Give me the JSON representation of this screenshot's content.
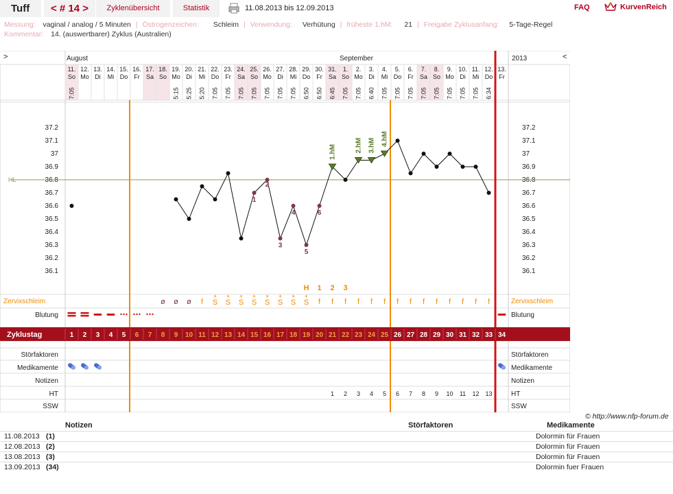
{
  "header": {
    "title": "Tuff",
    "cycle_tab": "< # 14 >",
    "tab_overview": "Zyklenübersicht",
    "tab_stats": "Statistik",
    "date_range": "11.08.2013 bis 12.09.2013",
    "faq": "FAQ",
    "brand": "KurvenReich"
  },
  "info": {
    "messung_label": "Messung:",
    "messung_value": "vaginal / analog / 5 Minuten",
    "oestrogen_label": "Östrogenzeichen:",
    "oestrogen_value": "Schleim",
    "verwendung_label": "Verwendung:",
    "verwendung_value": "Verhütung",
    "frueheste_label": "früheste 1.hM:",
    "frueheste_value": "21",
    "freigabe_label": "Freigabe Zyklusanfang:",
    "freigabe_value": "5-Tage-Regel",
    "kommentar_label": "Kommentar:",
    "kommentar_value": "14. (auswertbarer) Zyklus (Australien)"
  },
  "chart": {
    "nav_left": ">",
    "nav_right": "<",
    "month1": "August",
    "month2": "September",
    "year": "2013",
    "hl_label": "HL",
    "y_ticks": [
      "37.2",
      "37.1",
      "37",
      "36.9",
      "36.8",
      "36.7",
      "36.6",
      "36.5",
      "36.4",
      "36.3",
      "36.2",
      "36.1"
    ],
    "row_labels": {
      "zervix": "Zervixschleim",
      "blutung": "Blutung",
      "zyklustag": "Zyklustag",
      "stoer": "Störfaktoren",
      "medi": "Medikamente",
      "notizen": "Notizen",
      "ht": "HT",
      "ssw": "SSW"
    },
    "markers": {
      "h": "H",
      "one": "1",
      "two": "2",
      "three": "3"
    },
    "hm_labels": [
      "1.hM",
      "2.hM",
      "3.hM",
      "4.hM"
    ]
  },
  "chart_data": {
    "type": "line",
    "title": "",
    "coverline": 36.8,
    "ylim": [
      36.0,
      37.3
    ],
    "days": [
      {
        "date": "11.",
        "wd": "So",
        "time": "7:05",
        "temp": 36.6,
        "zt": "1",
        "mucus": "",
        "ht": ""
      },
      {
        "date": "12.",
        "wd": "Mo",
        "time": "",
        "temp": null,
        "zt": "2",
        "mucus": "",
        "ht": ""
      },
      {
        "date": "13.",
        "wd": "Di",
        "time": "",
        "temp": null,
        "zt": "3",
        "mucus": "",
        "ht": ""
      },
      {
        "date": "14.",
        "wd": "Mi",
        "time": "",
        "temp": null,
        "zt": "4",
        "mucus": "",
        "ht": ""
      },
      {
        "date": "15.",
        "wd": "Do",
        "time": "",
        "temp": null,
        "zt": "5",
        "mucus": "",
        "ht": ""
      },
      {
        "date": "16.",
        "wd": "Fr",
        "time": "",
        "temp": null,
        "zt": "6",
        "mucus": "",
        "ht": ""
      },
      {
        "date": "17.",
        "wd": "Sa",
        "time": "",
        "temp": null,
        "zt": "7",
        "mucus": "",
        "ht": ""
      },
      {
        "date": "18.",
        "wd": "So",
        "time": "",
        "temp": null,
        "zt": "8",
        "mucus": "ø",
        "ht": ""
      },
      {
        "date": "19.",
        "wd": "Mo",
        "time": "5:15",
        "temp": 36.65,
        "zt": "9",
        "mucus": "ø",
        "ht": ""
      },
      {
        "date": "20.",
        "wd": "Di",
        "time": "5:25",
        "temp": 36.5,
        "zt": "10",
        "mucus": "ø",
        "ht": ""
      },
      {
        "date": "21.",
        "wd": "Mi",
        "time": "5:20",
        "temp": 36.75,
        "zt": "11",
        "mucus": "f",
        "ht": ""
      },
      {
        "date": "22.",
        "wd": "Do",
        "time": "7:05",
        "temp": 36.65,
        "zt": "12",
        "mucus": "S+",
        "ht": ""
      },
      {
        "date": "23.",
        "wd": "Fr",
        "time": "7:05",
        "temp": 36.85,
        "zt": "13",
        "mucus": "S+",
        "ht": ""
      },
      {
        "date": "24.",
        "wd": "Sa",
        "time": "7:05",
        "temp": 36.35,
        "zt": "14",
        "mucus": "S+",
        "ht": ""
      },
      {
        "date": "25.",
        "wd": "So",
        "time": "7:05",
        "temp": 36.7,
        "zt": "15",
        "mucus": "S+",
        "ht": ""
      },
      {
        "date": "26.",
        "wd": "Mo",
        "time": "7:05",
        "temp": 36.8,
        "zt": "16",
        "mucus": "S+",
        "ht": ""
      },
      {
        "date": "27.",
        "wd": "Di",
        "time": "7:05",
        "temp": 36.35,
        "zt": "17",
        "mucus": "S+",
        "ht": ""
      },
      {
        "date": "28.",
        "wd": "Mi",
        "time": "7:05",
        "temp": 36.6,
        "zt": "18",
        "mucus": "S+",
        "ht": ""
      },
      {
        "date": "29.",
        "wd": "Do",
        "time": "6:50",
        "temp": 36.3,
        "zt": "19",
        "mucus": "S+",
        "ht": ""
      },
      {
        "date": "30.",
        "wd": "Fr",
        "time": "6:50",
        "temp": 36.6,
        "zt": "20",
        "mucus": "f",
        "ht": ""
      },
      {
        "date": "31.",
        "wd": "Sa",
        "time": "6:45",
        "temp": 36.9,
        "zt": "21",
        "mucus": "f",
        "ht": "1"
      },
      {
        "date": "1.",
        "wd": "So",
        "time": "7:05",
        "temp": 36.8,
        "zt": "22",
        "mucus": "f",
        "ht": "2"
      },
      {
        "date": "2.",
        "wd": "Mo",
        "time": "7:05",
        "temp": 36.95,
        "zt": "23",
        "mucus": "f",
        "ht": "3"
      },
      {
        "date": "3.",
        "wd": "Di",
        "time": "6:40",
        "temp": 36.95,
        "zt": "24",
        "mucus": "f",
        "ht": "4"
      },
      {
        "date": "4.",
        "wd": "Mi",
        "time": "7:05",
        "temp": 37.0,
        "zt": "25",
        "mucus": "f",
        "ht": "5"
      },
      {
        "date": "5.",
        "wd": "Do",
        "time": "7:05",
        "temp": 37.1,
        "zt": "26",
        "mucus": "f",
        "ht": "6"
      },
      {
        "date": "6.",
        "wd": "Fr",
        "time": "7:05",
        "temp": 36.85,
        "zt": "27",
        "mucus": "f",
        "ht": "7"
      },
      {
        "date": "7.",
        "wd": "Sa",
        "time": "7:05",
        "temp": 37.0,
        "zt": "28",
        "mucus": "f",
        "ht": "8"
      },
      {
        "date": "8.",
        "wd": "So",
        "time": "7:05",
        "temp": 36.9,
        "zt": "29",
        "mucus": "f",
        "ht": "9"
      },
      {
        "date": "9.",
        "wd": "Mo",
        "time": "7:05",
        "temp": 37.0,
        "zt": "30",
        "mucus": "f",
        "ht": "10"
      },
      {
        "date": "10.",
        "wd": "Di",
        "time": "7:05",
        "temp": 36.9,
        "zt": "31",
        "mucus": "f",
        "ht": "11"
      },
      {
        "date": "11.",
        "wd": "Mi",
        "time": "7:05",
        "temp": 36.9,
        "zt": "32",
        "mucus": "f",
        "ht": "12"
      },
      {
        "date": "12.",
        "wd": "Do",
        "time": "6:34",
        "temp": 36.7,
        "zt": "33",
        "mucus": "f",
        "ht": "13"
      },
      {
        "date": "13.",
        "wd": "Fr",
        "time": "",
        "temp": null,
        "zt": "34",
        "mucus": "",
        "ht": ""
      }
    ],
    "bleeding": [
      "heavy",
      "heavy",
      "medium",
      "medium",
      "spot",
      "spot",
      "spot",
      "",
      "",
      "",
      "",
      "",
      "",
      "",
      "",
      "",
      "",
      "",
      "",
      "",
      "",
      "",
      "",
      "",
      "",
      "",
      "",
      "",
      "",
      "",
      "",
      "",
      "",
      "medium"
    ],
    "medication": [
      true,
      true,
      true,
      false,
      false,
      false,
      false,
      false,
      false,
      false,
      false,
      false,
      false,
      false,
      false,
      false,
      false,
      false,
      false,
      false,
      false,
      false,
      false,
      false,
      false,
      false,
      false,
      false,
      false,
      false,
      false,
      false,
      false,
      true
    ],
    "low_labels": [
      {
        "day": 15,
        "n": "1"
      },
      {
        "day": 16,
        "n": "2"
      },
      {
        "day": 17,
        "n": "3"
      },
      {
        "day": 18,
        "n": "4"
      },
      {
        "day": 19,
        "n": "5"
      },
      {
        "day": 20,
        "n": "6"
      }
    ],
    "hm_days": [
      21,
      23,
      24,
      25
    ],
    "mucus_peak_markers": [
      {
        "day": 19,
        "t": "H"
      },
      {
        "day": 20,
        "t": "1"
      },
      {
        "day": 21,
        "t": "2"
      },
      {
        "day": 22,
        "t": "3"
      }
    ]
  },
  "notes": {
    "copyright": "© http://www.nfp-forum.de",
    "col_notizen": "Notizen",
    "col_stoer": "Störfaktoren",
    "col_medi": "Medikamente",
    "rows": [
      {
        "date": "11.08.2013",
        "day": "(1)",
        "medi": "Dolormin für Frauen"
      },
      {
        "date": "12.08.2013",
        "day": "(2)",
        "medi": "Dolormin für Frauen"
      },
      {
        "date": "13.08.2013",
        "day": "(3)",
        "medi": "Dolormin für Frauen"
      },
      {
        "date": "13.09.2013",
        "day": "(34)",
        "medi": "Dolormin fuer Frauen"
      }
    ]
  }
}
